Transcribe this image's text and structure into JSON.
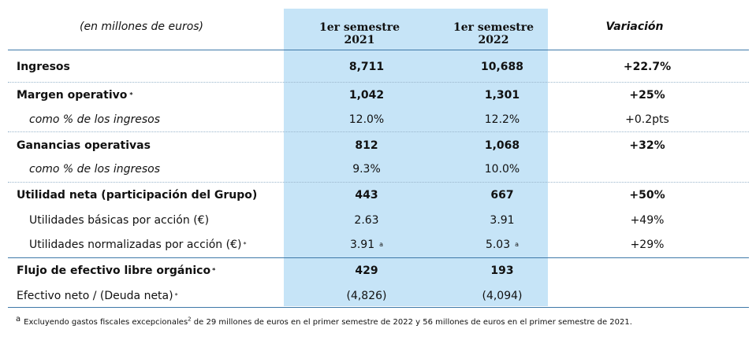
{
  "header": {
    "units": "(en millones de euros)",
    "col1": "1er semestre 2021",
    "col1_line1": "1er semestre",
    "col1_line2": "2021",
    "col2_line1": "1er semestre",
    "col2_line2": "2022",
    "col3": "Variación"
  },
  "rows": [
    {
      "label": "Ingresos",
      "v1": "8,711",
      "v2": "10,688",
      "var": "+22.7%"
    },
    {
      "label": "Margen operativo",
      "sup": "*",
      "v1": "1,042",
      "v2": "1,301",
      "var": "+25%"
    },
    {
      "label": "como % de los ingresos",
      "v1": "12.0%",
      "v2": "12.2%",
      "var": "+0.2pts"
    },
    {
      "label": "Ganancias operativas",
      "v1": "812",
      "v2": "1,068",
      "var": "+32%"
    },
    {
      "label": "como % de los ingresos",
      "v1": "9.3%",
      "v2": "10.0%",
      "var": ""
    },
    {
      "label": "Utilidad neta (participación del Grupo)",
      "v1": "443",
      "v2": "667",
      "var": "+50%"
    },
    {
      "label": "Utilidades básicas por acción (€)",
      "v1": "2.63",
      "v2": "3.91",
      "var": "+49%"
    },
    {
      "label": "Utilidades normalizadas por acción (€)",
      "sup": "*",
      "v1": "3.91",
      "v1_sup": "a",
      "v2": "5.03",
      "v2_sup": "a",
      "var": "+29%"
    },
    {
      "label": "Flujo de efectivo libre orgánico",
      "sup": "*",
      "v1": "429",
      "v2": "193",
      "var": ""
    },
    {
      "label": "Efectivo neto / (Deuda neta)",
      "sup": "*",
      "v1": "(4,826)",
      "v2": "(4,094)",
      "var": ""
    }
  ],
  "footnote": {
    "marker": "a",
    "text_part1": "Excluyendo gastos fiscales excepcionales",
    "sup": "2",
    "text_part2": " de 29 millones de euros en el primer semestre de 2022 y 56 millones de euros en el primer semestre de 2021."
  },
  "colors": {
    "highlight": "#c6e4f7",
    "rule": "#3e79a8"
  }
}
